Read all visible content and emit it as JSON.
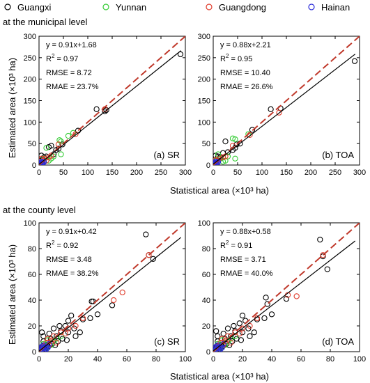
{
  "legend": {
    "entries": [
      {
        "label": "Guangxi",
        "color": "#000000"
      },
      {
        "label": "Yunnan",
        "color": "#33cc33"
      },
      {
        "label": "Guangdong",
        "color": "#e03c2c"
      },
      {
        "label": "Hainan",
        "color": "#2a2ad9"
      }
    ]
  },
  "sections": {
    "municipal": "at the municipal level",
    "county": "at the county level"
  },
  "axis_labels": {
    "x": "Statistical area (×10³ ha)",
    "y": "Estimated area (×10³ ha)"
  },
  "colors": {
    "fit_line": "#000000",
    "one_to_one": "#c0392b"
  },
  "chart_data": [
    {
      "type": "scatter",
      "panel": "(a) SR",
      "xlim": [
        0,
        300
      ],
      "ylim": [
        0,
        300
      ],
      "xticks": [
        0,
        50,
        100,
        150,
        200,
        250,
        300
      ],
      "yticks": [
        0,
        50,
        100,
        150,
        200,
        250,
        300
      ],
      "stats": {
        "eq": "y = 0.91x+1.68",
        "r2": "0.97",
        "rmse": "RMSE = 8.72",
        "rmae": "RMAE = 23.7%"
      },
      "fit": {
        "slope": 0.91,
        "intercept": 1.68
      },
      "series": [
        {
          "name": "Guangxi",
          "points": [
            [
              290,
              258
            ],
            [
              118,
              130
            ],
            [
              138,
              128
            ],
            [
              135,
              125
            ],
            [
              80,
              80
            ],
            [
              48,
              48
            ],
            [
              40,
              38
            ],
            [
              35,
              35
            ],
            [
              25,
              45
            ],
            [
              20,
              42
            ],
            [
              10,
              18
            ],
            [
              5,
              22
            ],
            [
              3,
              10
            ],
            [
              8,
              12
            ],
            [
              15,
              20
            ],
            [
              30,
              25
            ]
          ]
        },
        {
          "name": "Yunnan",
          "points": [
            [
              70,
              75
            ],
            [
              60,
              68
            ],
            [
              45,
              55
            ],
            [
              42,
              58
            ],
            [
              45,
              25
            ],
            [
              25,
              15
            ],
            [
              20,
              10
            ],
            [
              15,
              40
            ],
            [
              5,
              8
            ],
            [
              10,
              15
            ],
            [
              3,
              5
            ],
            [
              30,
              20
            ]
          ]
        },
        {
          "name": "Guangdong",
          "points": [
            [
              135,
              130
            ],
            [
              75,
              72
            ],
            [
              40,
              48
            ],
            [
              20,
              18
            ],
            [
              12,
              15
            ],
            [
              8,
              10
            ],
            [
              5,
              15
            ],
            [
              3,
              5
            ],
            [
              15,
              10
            ],
            [
              25,
              22
            ]
          ]
        },
        {
          "name": "Hainan",
          "points": [
            [
              2,
              3
            ],
            [
              4,
              2
            ],
            [
              6,
              5
            ],
            [
              1,
              1
            ],
            [
              3,
              4
            ],
            [
              8,
              6
            ],
            [
              5,
              8
            ],
            [
              10,
              7
            ],
            [
              2,
              6
            ],
            [
              7,
              3
            ]
          ]
        }
      ]
    },
    {
      "type": "scatter",
      "panel": "(b) TOA",
      "xlim": [
        0,
        300
      ],
      "ylim": [
        0,
        300
      ],
      "xticks": [
        0,
        50,
        100,
        150,
        200,
        250,
        300
      ],
      "yticks": [
        0,
        50,
        100,
        150,
        200,
        250,
        300
      ],
      "stats": {
        "eq": "y = 0.88x+2.21",
        "r2": "0.95",
        "rmse": "RMSE = 10.40",
        "rmae": "RMAE = 26.6%"
      },
      "fit": {
        "slope": 0.88,
        "intercept": 2.21
      },
      "series": [
        {
          "name": "Guangxi",
          "points": [
            [
              290,
              242
            ],
            [
              118,
              130
            ],
            [
              138,
              132
            ],
            [
              80,
              82
            ],
            [
              55,
              50
            ],
            [
              45,
              40
            ],
            [
              40,
              35
            ],
            [
              25,
              55
            ],
            [
              30,
              30
            ],
            [
              20,
              28
            ],
            [
              10,
              20
            ],
            [
              5,
              22
            ],
            [
              3,
              10
            ],
            [
              15,
              18
            ],
            [
              48,
              48
            ]
          ]
        },
        {
          "name": "Yunnan",
          "points": [
            [
              72,
              72
            ],
            [
              45,
              60
            ],
            [
              40,
              62
            ],
            [
              45,
              15
            ],
            [
              25,
              10
            ],
            [
              20,
              8
            ],
            [
              10,
              25
            ],
            [
              5,
              10
            ],
            [
              30,
              20
            ],
            [
              15,
              15
            ]
          ]
        },
        {
          "name": "Guangdong",
          "points": [
            [
              135,
              122
            ],
            [
              75,
              70
            ],
            [
              40,
              45
            ],
            [
              20,
              18
            ],
            [
              12,
              14
            ],
            [
              8,
              10
            ],
            [
              5,
              12
            ],
            [
              3,
              5
            ],
            [
              25,
              20
            ]
          ]
        },
        {
          "name": "Hainan",
          "points": [
            [
              2,
              3
            ],
            [
              4,
              2
            ],
            [
              6,
              5
            ],
            [
              1,
              1
            ],
            [
              3,
              4
            ],
            [
              8,
              6
            ],
            [
              5,
              8
            ],
            [
              10,
              7
            ],
            [
              2,
              6
            ]
          ]
        }
      ]
    },
    {
      "type": "scatter",
      "panel": "(c) SR",
      "xlim": [
        0,
        100
      ],
      "ylim": [
        0,
        100
      ],
      "xticks": [
        0,
        20,
        40,
        60,
        80,
        100
      ],
      "yticks": [
        0,
        20,
        40,
        60,
        80,
        100
      ],
      "stats": {
        "eq": "y = 0.91x+0.42",
        "r2": "0.92",
        "rmse": "RMSE = 3.48",
        "rmae": "RMAE = 38.2%"
      },
      "fit": {
        "slope": 0.91,
        "intercept": 0.42
      },
      "series": [
        {
          "name": "Guangxi",
          "points": [
            [
              73,
              91
            ],
            [
              78,
              72
            ],
            [
              75,
              75
            ],
            [
              36,
              39
            ],
            [
              37,
              39
            ],
            [
              35,
              26
            ],
            [
              40,
              29
            ],
            [
              50,
              36
            ],
            [
              20,
              24
            ],
            [
              18,
              20
            ],
            [
              22,
              28
            ],
            [
              15,
              16
            ],
            [
              12,
              12
            ],
            [
              10,
              18
            ],
            [
              8,
              10
            ],
            [
              5,
              5
            ],
            [
              3,
              8
            ],
            [
              2,
              15
            ],
            [
              25,
              12
            ],
            [
              28,
              15
            ],
            [
              30,
              25
            ],
            [
              16,
              10
            ],
            [
              6,
              4
            ],
            [
              4,
              2
            ],
            [
              2,
              3
            ],
            [
              1,
              1
            ],
            [
              9,
              6
            ],
            [
              13,
              8
            ],
            [
              14,
              20
            ],
            [
              20,
              15
            ],
            [
              3,
              12
            ],
            [
              7,
              14
            ],
            [
              11,
              5
            ],
            [
              24,
              18
            ],
            [
              19,
              9
            ]
          ]
        },
        {
          "name": "Yunnan",
          "points": [
            [
              10,
              8
            ],
            [
              8,
              5
            ],
            [
              5,
              3
            ],
            [
              3,
              6
            ],
            [
              12,
              10
            ],
            [
              6,
              9
            ],
            [
              15,
              12
            ],
            [
              4,
              4
            ],
            [
              2,
              2
            ]
          ]
        },
        {
          "name": "Guangdong",
          "points": [
            [
              57,
              46
            ],
            [
              51,
              40
            ],
            [
              75,
              75
            ],
            [
              30,
              26
            ],
            [
              20,
              18
            ],
            [
              15,
              15
            ],
            [
              10,
              12
            ],
            [
              8,
              8
            ],
            [
              5,
              7
            ],
            [
              3,
              4
            ],
            [
              12,
              7
            ],
            [
              18,
              14
            ],
            [
              25,
              20
            ],
            [
              7,
              5
            ],
            [
              2,
              2
            ],
            [
              6,
              10
            ]
          ]
        },
        {
          "name": "Hainan",
          "points": [
            [
              1,
              1
            ],
            [
              2,
              2
            ],
            [
              3,
              1
            ],
            [
              4,
              3
            ],
            [
              5,
              4
            ],
            [
              2,
              4
            ],
            [
              3,
              5
            ],
            [
              6,
              3
            ],
            [
              1,
              3
            ],
            [
              4,
              1
            ],
            [
              7,
              6
            ],
            [
              5,
              2
            ],
            [
              3,
              3
            ]
          ]
        }
      ]
    },
    {
      "type": "scatter",
      "panel": "(d) TOA",
      "xlim": [
        0,
        100
      ],
      "ylim": [
        0,
        100
      ],
      "xticks": [
        0,
        20,
        40,
        60,
        80,
        100
      ],
      "yticks": [
        0,
        20,
        40,
        60,
        80,
        100
      ],
      "stats": {
        "eq": "y = 0.88x+0.58",
        "r2": "0.91",
        "rmse": "RMSE = 3.71",
        "rmae": "RMAE = 40.0%"
      },
      "fit": {
        "slope": 0.88,
        "intercept": 0.58
      },
      "series": [
        {
          "name": "Guangxi",
          "points": [
            [
              73,
              87
            ],
            [
              78,
              64
            ],
            [
              75,
              74
            ],
            [
              36,
              42
            ],
            [
              37,
              37
            ],
            [
              35,
              26
            ],
            [
              40,
              29
            ],
            [
              50,
              41
            ],
            [
              20,
              28
            ],
            [
              18,
              22
            ],
            [
              22,
              24
            ],
            [
              15,
              16
            ],
            [
              12,
              12
            ],
            [
              10,
              18
            ],
            [
              8,
              10
            ],
            [
              5,
              5
            ],
            [
              3,
              8
            ],
            [
              2,
              16
            ],
            [
              25,
              12
            ],
            [
              28,
              15
            ],
            [
              30,
              25
            ],
            [
              16,
              10
            ],
            [
              6,
              4
            ],
            [
              4,
              2
            ],
            [
              2,
              3
            ],
            [
              1,
              1
            ],
            [
              9,
              6
            ],
            [
              13,
              8
            ],
            [
              14,
              20
            ],
            [
              20,
              15
            ],
            [
              3,
              12
            ],
            [
              7,
              14
            ],
            [
              11,
              5
            ],
            [
              24,
              18
            ],
            [
              19,
              9
            ]
          ]
        },
        {
          "name": "Yunnan",
          "points": [
            [
              10,
              8
            ],
            [
              8,
              5
            ],
            [
              5,
              3
            ],
            [
              3,
              6
            ],
            [
              12,
              10
            ],
            [
              6,
              9
            ],
            [
              15,
              12
            ],
            [
              4,
              4
            ],
            [
              2,
              2
            ]
          ]
        },
        {
          "name": "Guangdong",
          "points": [
            [
              57,
              43
            ],
            [
              51,
              44
            ],
            [
              75,
              75
            ],
            [
              30,
              26
            ],
            [
              20,
              18
            ],
            [
              15,
              15
            ],
            [
              10,
              12
            ],
            [
              8,
              8
            ],
            [
              5,
              7
            ],
            [
              3,
              4
            ],
            [
              12,
              7
            ],
            [
              18,
              14
            ],
            [
              25,
              20
            ],
            [
              7,
              5
            ],
            [
              2,
              2
            ],
            [
              6,
              10
            ]
          ]
        },
        {
          "name": "Hainan",
          "points": [
            [
              1,
              1
            ],
            [
              2,
              2
            ],
            [
              3,
              1
            ],
            [
              4,
              3
            ],
            [
              5,
              4
            ],
            [
              2,
              4
            ],
            [
              3,
              5
            ],
            [
              6,
              3
            ],
            [
              1,
              3
            ],
            [
              4,
              1
            ],
            [
              7,
              6
            ],
            [
              5,
              2
            ],
            [
              3,
              3
            ]
          ]
        }
      ]
    }
  ]
}
